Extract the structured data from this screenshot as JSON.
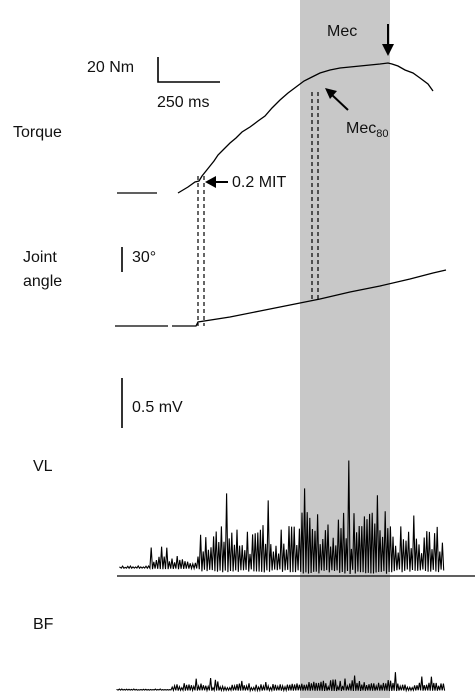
{
  "labels": {
    "torque": "Torque",
    "joint_angle_line1": "Joint",
    "joint_angle_line2": "angle",
    "vl": "VL",
    "bf": "BF"
  },
  "scale_bars": {
    "torque": "20 Nm",
    "time": "250 ms",
    "angle": "30°",
    "emg": "0.5 mV"
  },
  "annotations": {
    "mec": "Mec",
    "mec80_base": "Mec",
    "mec80_sub": "80",
    "mit": "0.2 MIT"
  },
  "colors": {
    "shaded_region": "#c8c8c8",
    "trace": "#000000"
  }
}
